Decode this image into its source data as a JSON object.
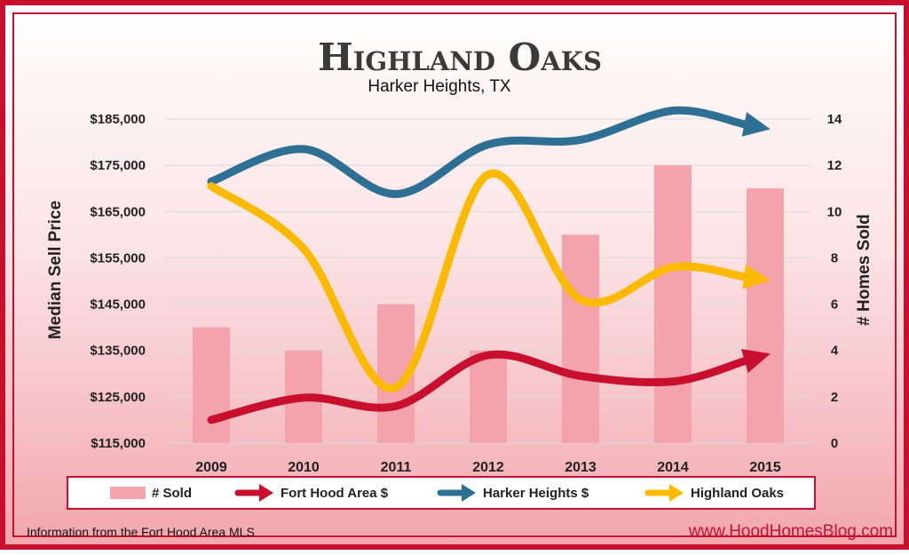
{
  "chart_data": {
    "type": "bar+line",
    "title": "Highland Oaks",
    "subtitle": "Harker Heights, TX",
    "ylabel": "Median Sell Price",
    "y2label": "# Homes Sold",
    "categories": [
      "2009",
      "2010",
      "2011",
      "2012",
      "2013",
      "2014",
      "2015"
    ],
    "ylim": [
      115000,
      185000
    ],
    "y2lim": [
      0,
      14
    ],
    "yticks": [
      "$115,000",
      "$125,000",
      "$135,000",
      "$145,000",
      "$155,000",
      "$165,000",
      "$175,000",
      "$185,000"
    ],
    "y2ticks": [
      "0",
      "2",
      "4",
      "6",
      "8",
      "10",
      "12",
      "14"
    ],
    "bars": {
      "name": "# Sold",
      "axis": "right",
      "color": "#f4a3ad",
      "values": [
        5,
        4,
        6,
        4,
        9,
        12,
        11
      ]
    },
    "series": [
      {
        "name": "Fort Hood Area $",
        "color": "#c8102e",
        "values": [
          120000,
          124800,
          123000,
          134000,
          129500,
          128300,
          134000
        ]
      },
      {
        "name": "Harker Heights $",
        "color": "#2e6f94",
        "values": [
          171500,
          178500,
          168800,
          179500,
          180500,
          186800,
          183000
        ]
      },
      {
        "name": "Highland Oaks",
        "color": "#fbb900",
        "values": [
          170500,
          157000,
          127000,
          173000,
          146000,
          153000,
          150300
        ]
      }
    ],
    "grid": true,
    "legend": "bottom"
  },
  "footer": {
    "left": "Information from the Fort Hood Area MLS",
    "right": "www.HoodHomesBlog.com"
  }
}
